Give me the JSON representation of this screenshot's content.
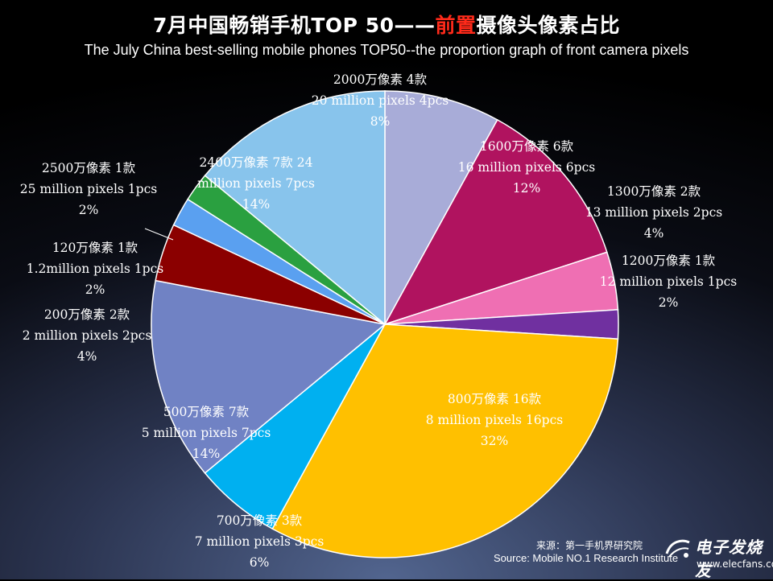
{
  "title": {
    "part1": "7月中国畅销手机TOP 50——",
    "highlight": "前置",
    "part2": "摄像头像素占比"
  },
  "subtitle": "The July China best-selling mobile phones TOP50--the proportion graph of front camera pixels",
  "source": {
    "cn": "来源：第一手机界研究院",
    "en": "Source: Mobile NO.1 Research Institute"
  },
  "watermark": {
    "cn": "电子发烧友",
    "en": "www.elecfans.com"
  },
  "chart_data": {
    "type": "pie",
    "total": 50,
    "start": "12 o'clock, clockwise",
    "slices": [
      {
        "value": 4,
        "percent": 8,
        "color": "#a8acd8",
        "label": [
          "2000万像素 4款",
          "20 million pixels 4pcs",
          "8%"
        ]
      },
      {
        "value": 6,
        "percent": 12,
        "color": "#b0135f",
        "label": [
          "1600万像素 6款",
          "16 million pixels 6pcs",
          "12%"
        ]
      },
      {
        "value": 2,
        "percent": 4,
        "color": "#ef6fb3",
        "label": [
          "1300万像素 2款",
          "13 million pixels 2pcs",
          "4%"
        ]
      },
      {
        "value": 1,
        "percent": 2,
        "color": "#7030a0",
        "label": [
          "1200万像素 1款",
          "12 million pixels 1pcs",
          "2%"
        ]
      },
      {
        "value": 16,
        "percent": 32,
        "color": "#ffc000",
        "label": [
          "800万像素 16款",
          "8 million pixels 16pcs",
          "32%"
        ]
      },
      {
        "value": 3,
        "percent": 6,
        "color": "#00b0f0",
        "label": [
          "700万像素 3款",
          "7 million pixels 3pcs",
          "6%"
        ]
      },
      {
        "value": 7,
        "percent": 14,
        "color": "#7082c4",
        "label": [
          "500万像素 7款",
          "5 million pixels 7pcs",
          "14%"
        ]
      },
      {
        "value": 2,
        "percent": 4,
        "color": "#8b0000",
        "label": [
          "200万像素 2款",
          "2 million pixels 2pcs",
          "4%"
        ]
      },
      {
        "value": 1,
        "percent": 2,
        "color": "#5aa0f0",
        "label": [
          "120万像素 1款",
          "1.2million pixels 1pcs",
          "2%"
        ]
      },
      {
        "value": 1,
        "percent": 2,
        "color": "#2aa040",
        "label": [
          "2500万像素 1款",
          "25 million pixels 1pcs",
          "2%"
        ]
      },
      {
        "value": 7,
        "percent": 14,
        "color": "#88c4ec",
        "label": [
          "2400万像素 7款 24",
          "million pixels 7pcs",
          "14%"
        ]
      }
    ]
  }
}
